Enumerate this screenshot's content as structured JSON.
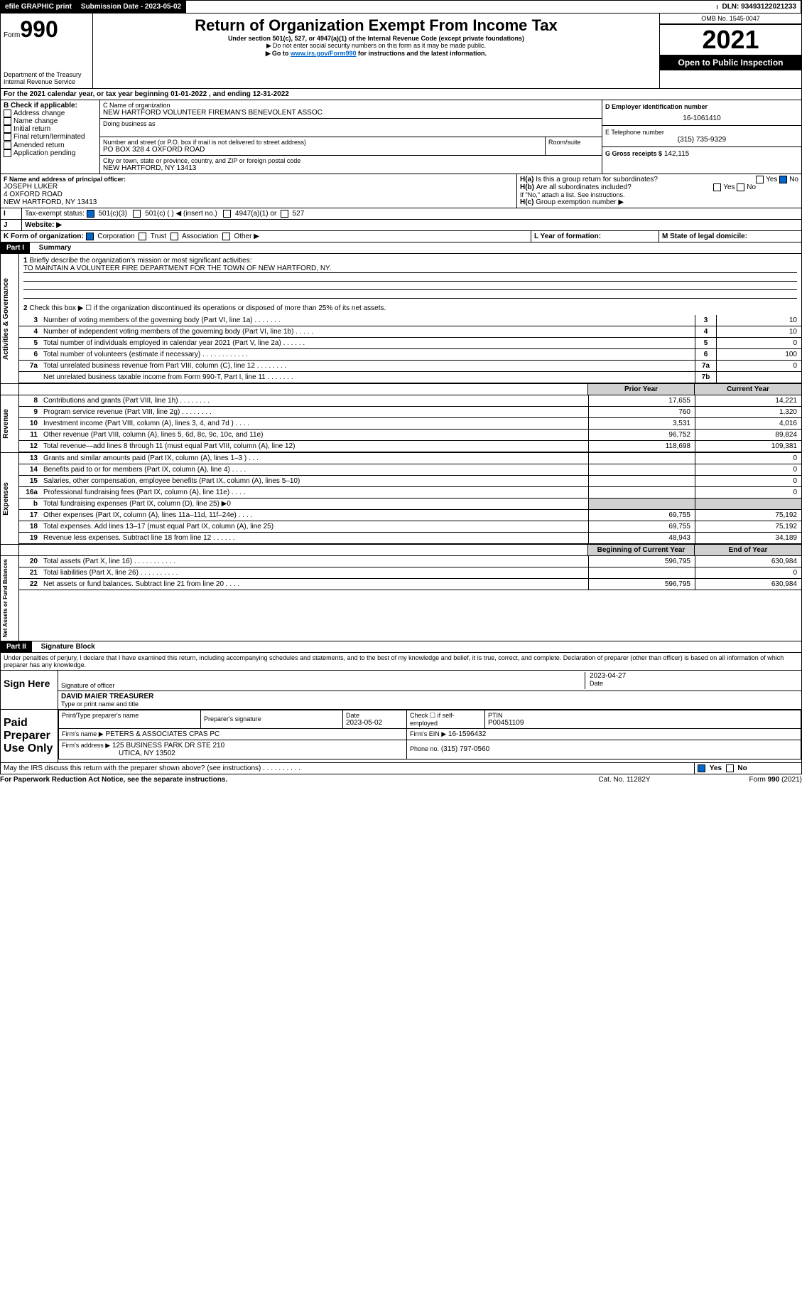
{
  "topbar": {
    "efile": "efile GRAPHIC print",
    "subdate_label": "Submission Date - 2023-05-02",
    "dln_label": "DLN: 93493122021233"
  },
  "header": {
    "form_label": "Form",
    "form_num": "990",
    "title": "Return of Organization Exempt From Income Tax",
    "subtitle": "Under section 501(c), 527, or 4947(a)(1) of the Internal Revenue Code (except private foundations)",
    "note1": "Do not enter social security numbers on this form as it may be made public.",
    "note2": "Go to ",
    "note2_link": "www.irs.gov/Form990",
    "note2_rest": " for instructions and the latest information.",
    "dept": "Department of the Treasury",
    "irs": "Internal Revenue Service",
    "omb": "OMB No. 1545-0047",
    "year": "2021",
    "open": "Open to Public Inspection"
  },
  "line_a": "For the 2021 calendar year, or tax year beginning 01-01-2022    , and ending 12-31-2022",
  "box_b": {
    "label": "B Check if applicable:",
    "opts": [
      "Address change",
      "Name change",
      "Initial return",
      "Final return/terminated",
      "Amended return",
      "Application pending"
    ]
  },
  "box_c": {
    "name_label": "C Name of organization",
    "name": "NEW HARTFORD VOLUNTEER FIREMAN'S BENEVOLENT ASSOC",
    "dba": "Doing business as",
    "addr_label": "Number and street (or P.O. box if mail is not delivered to street address)",
    "addr": "PO BOX 328 4 OXFORD ROAD",
    "room": "Room/suite",
    "city_label": "City or town, state or province, country, and ZIP or foreign postal code",
    "city": "NEW HARTFORD, NY  13413"
  },
  "box_d": {
    "label": "D Employer identification number",
    "val": "16-1061410"
  },
  "box_e": {
    "label": "E Telephone number",
    "val": "(315) 735-9329"
  },
  "box_g": {
    "label": "G Gross receipts $",
    "val": "142,115"
  },
  "box_f": {
    "label": "F  Name and address of principal officer:",
    "name": "JOSEPH LUKER",
    "addr1": "4 OXFORD ROAD",
    "addr2": "NEW HARTFORD, NY  13413"
  },
  "box_h": {
    "a": "Is this a group return for subordinates?",
    "b": "Are all subordinates included?",
    "c": "Group exemption number ▶",
    "note": "If \"No,\" attach a list. See instructions.",
    "yes": "Yes",
    "no": "No"
  },
  "box_i": {
    "label": "Tax-exempt status:",
    "o1": "501(c)(3)",
    "o2": "501(c) (  ) ◀ (insert no.)",
    "o3": "4947(a)(1) or",
    "o4": "527"
  },
  "box_j": {
    "label": "Website: ▶"
  },
  "box_k": {
    "label": "K Form of organization:",
    "o1": "Corporation",
    "o2": "Trust",
    "o3": "Association",
    "o4": "Other ▶"
  },
  "box_l": {
    "label": "L Year of formation:"
  },
  "box_m": {
    "label": "M State of legal domicile:"
  },
  "part1": {
    "hdr": "Part I",
    "title": "Summary",
    "q1": "Briefly describe the organization's mission or most significant activities:",
    "q1_ans": "TO MAINTAIN A VOLUNTEER FIRE DEPARTMENT FOR THE TOWN OF NEW HARTFORD, NY.",
    "q2": "Check this box ▶ ☐  if the organization discontinued its operations or disposed of more than 25% of its net assets.",
    "sections": {
      "gov": "Activities & Governance",
      "rev": "Revenue",
      "exp": "Expenses",
      "net": "Net Assets or Fund Balances"
    },
    "lines": [
      {
        "n": "3",
        "d": "Number of voting members of the governing body (Part VI, line 1a)   .    .    .    .    .    .    .",
        "lab": "3",
        "v": "10"
      },
      {
        "n": "4",
        "d": "Number of independent voting members of the governing body (Part VI, line 1b)   .    .    .    .    .",
        "lab": "4",
        "v": "10"
      },
      {
        "n": "5",
        "d": "Total number of individuals employed in calendar year 2021 (Part V, line 2a)   .    .    .    .    .    .",
        "lab": "5",
        "v": "0"
      },
      {
        "n": "6",
        "d": "Total number of volunteers (estimate if necessary)   .    .    .    .    .    .    .    .    .    .    .    .",
        "lab": "6",
        "v": "100"
      },
      {
        "n": "7a",
        "d": "Total unrelated business revenue from Part VIII, column (C), line 12   .    .    .    .    .    .    .    .",
        "lab": "7a",
        "v": "0"
      },
      {
        "n": "",
        "d": "Net unrelated business taxable income from Form 990-T, Part I, line 11   .    .    .    .    .    .    .",
        "lab": "7b",
        "v": ""
      }
    ],
    "col_hdr_prior": "Prior Year",
    "col_hdr_curr": "Current Year",
    "two_col_lines": [
      {
        "n": "8",
        "d": "Contributions and grants (Part VIII, line 1h)   .    .    .    .    .    .    .    .",
        "p": "17,655",
        "c": "14,221"
      },
      {
        "n": "9",
        "d": "Program service revenue (Part VIII, line 2g)   .    .    .    .    .    .    .    .",
        "p": "760",
        "c": "1,320"
      },
      {
        "n": "10",
        "d": "Investment income (Part VIII, column (A), lines 3, 4, and 7d )   .    .    .    .",
        "p": "3,531",
        "c": "4,016"
      },
      {
        "n": "11",
        "d": "Other revenue (Part VIII, column (A), lines 5, 6d, 8c, 9c, 10c, and 11e)",
        "p": "96,752",
        "c": "89,824"
      },
      {
        "n": "12",
        "d": "Total revenue—add lines 8 through 11 (must equal Part VIII, column (A), line 12)",
        "p": "118,698",
        "c": "109,381"
      },
      {
        "n": "13",
        "d": "Grants and similar amounts paid (Part IX, column (A), lines 1–3 )   .    .    .",
        "p": "",
        "c": "0"
      },
      {
        "n": "14",
        "d": "Benefits paid to or for members (Part IX, column (A), line 4)   .    .    .    .",
        "p": "",
        "c": "0"
      },
      {
        "n": "15",
        "d": "Salaries, other compensation, employee benefits (Part IX, column (A), lines 5–10)",
        "p": "",
        "c": "0"
      },
      {
        "n": "16a",
        "d": "Professional fundraising fees (Part IX, column (A), line 11e)   .    .    .    .",
        "p": "",
        "c": "0"
      },
      {
        "n": "b",
        "d": "Total fundraising expenses (Part IX, column (D), line 25) ▶0",
        "p": "shade",
        "c": "shade"
      },
      {
        "n": "17",
        "d": "Other expenses (Part IX, column (A), lines 11a–11d, 11f–24e)   .    .    .    .",
        "p": "69,755",
        "c": "75,192"
      },
      {
        "n": "18",
        "d": "Total expenses. Add lines 13–17 (must equal Part IX, column (A), line 25)",
        "p": "69,755",
        "c": "75,192"
      },
      {
        "n": "19",
        "d": "Revenue less expenses. Subtract line 18 from line 12   .    .    .    .    .    .",
        "p": "48,943",
        "c": "34,189"
      }
    ],
    "col_hdr_beg": "Beginning of Current Year",
    "col_hdr_end": "End of Year",
    "net_lines": [
      {
        "n": "20",
        "d": "Total assets (Part X, line 16)   .    .    .    .    .    .    .    .    .    .    .",
        "p": "596,795",
        "c": "630,984"
      },
      {
        "n": "21",
        "d": "Total liabilities (Part X, line 26)   .    .    .    .    .    .    .    .    .    .",
        "p": "",
        "c": "0"
      },
      {
        "n": "22",
        "d": "Net assets or fund balances. Subtract line 21 from line 20   .    .    .    .",
        "p": "596,795",
        "c": "630,984"
      }
    ]
  },
  "part2": {
    "hdr": "Part II",
    "title": "Signature Block",
    "decl": "Under penalties of perjury, I declare that I have examined this return, including accompanying schedules and statements, and to the best of my knowledge and belief, it is true, correct, and complete. Declaration of preparer (other than officer) is based on all information of which preparer has any knowledge.",
    "sign_here": "Sign Here",
    "sig_officer": "Signature of officer",
    "sig_date": "Date",
    "sig_date_val": "2023-04-27",
    "officer_name": "DAVID MAIER  TREASURER",
    "type_name": "Type or print name and title",
    "paid": "Paid Preparer Use Only",
    "prep_name_lbl": "Print/Type preparer's name",
    "prep_sig_lbl": "Preparer's signature",
    "prep_date_lbl": "Date",
    "prep_date": "2023-05-02",
    "check_self": "Check ☐ if self-employed",
    "ptin_lbl": "PTIN",
    "ptin": "P00451109",
    "firm_name_lbl": "Firm's name    ▶",
    "firm_name": "PETERS & ASSOCIATES CPAS PC",
    "firm_ein_lbl": "Firm's EIN ▶",
    "firm_ein": "16-1596432",
    "firm_addr_lbl": "Firm's address ▶",
    "firm_addr": "125 BUSINESS PARK DR STE 210",
    "firm_city": "UTICA, NY  13502",
    "phone_lbl": "Phone no.",
    "phone": "(315) 797-0560",
    "may_irs": "May the IRS discuss this return with the preparer shown above? (see instructions)   .    .    .    .    .    .    .    .    .    .",
    "yes": "Yes",
    "no": "No"
  },
  "footer": {
    "pra": "For Paperwork Reduction Act Notice, see the separate instructions.",
    "cat": "Cat. No. 11282Y",
    "form": "Form 990 (2021)"
  }
}
